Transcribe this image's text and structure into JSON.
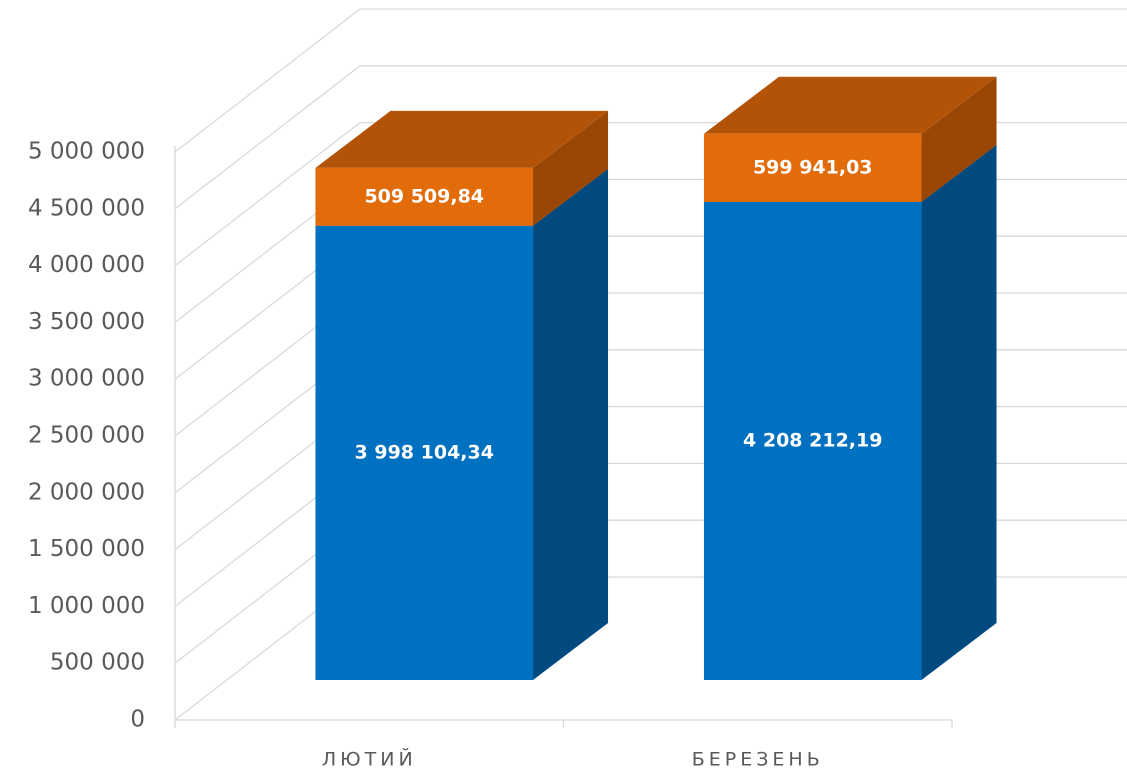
{
  "chart_data": {
    "type": "bar3d_stacked",
    "categories": [
      "ЛЮТИЙ",
      "БЕРЕЗЕНЬ"
    ],
    "series": [
      {
        "color": "#0070c0",
        "side_color": "#004a80",
        "top_color": "#0a5c9c",
        "values": [
          3998104.34,
          4208212.19
        ],
        "value_labels": [
          "3 998 104,34",
          "4 208 212,19"
        ]
      },
      {
        "color": "#e36c0a",
        "side_color": "#9a4705",
        "top_color": "#b35308",
        "values": [
          509509.84,
          599941.03
        ],
        "value_labels": [
          "509 509,84",
          "599 941,03"
        ]
      }
    ],
    "ylim": [
      0,
      5000000
    ],
    "yticks": [
      0,
      {
        "value": 500000,
        "label": "500 000"
      },
      {
        "value": 1000000,
        "label": "1 000 000"
      },
      {
        "value": 1500000,
        "label": "1 500 000"
      },
      {
        "value": 2000000,
        "label": "2 000 000"
      },
      {
        "value": 2500000,
        "label": "2 500 000"
      },
      {
        "value": 3000000,
        "label": "3 000 000"
      },
      {
        "value": 3500000,
        "label": "3 500 000"
      },
      {
        "value": 4000000,
        "label": "4 000 000"
      },
      {
        "value": 4500000,
        "label": "4 500 000"
      },
      {
        "value": 5000000,
        "label": "5 000 000"
      }
    ],
    "grid": true
  }
}
